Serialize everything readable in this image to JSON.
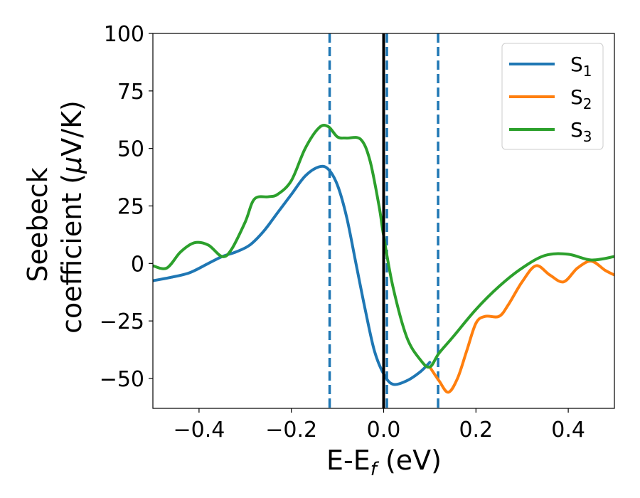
{
  "chart_data": {
    "type": "line",
    "xlabel": {
      "main": "E-E",
      "sub": "f",
      "rest": " (eV)"
    },
    "ylabel": {
      "line1": "Seebeck",
      "line2_pre": "coefficient  (",
      "mu": "μ",
      "line2_post": "V/K)"
    },
    "xlim": [
      -0.5,
      0.5
    ],
    "ylim": [
      -63,
      100
    ],
    "xticks": [
      -0.4,
      -0.2,
      0.0,
      0.2,
      0.4
    ],
    "xtick_labels": [
      "−0.4",
      "−0.2",
      "0.0",
      "0.2",
      "0.4"
    ],
    "yticks": [
      -50,
      -25,
      0,
      25,
      50,
      75,
      100
    ],
    "ytick_labels": [
      "−50",
      "−25",
      "0",
      "25",
      "50",
      "75",
      "100"
    ],
    "legend_position": "upper-right",
    "grid": false,
    "vlines": [
      {
        "x": 0.0,
        "style": "solid",
        "color": "#000000"
      },
      {
        "x": -0.117,
        "style": "dashed",
        "color": "#1f77b4"
      },
      {
        "x": 0.007,
        "style": "dashed",
        "color": "#1f77b4"
      },
      {
        "x": 0.118,
        "style": "dashed",
        "color": "#1f77b4"
      }
    ],
    "series": [
      {
        "name": {
          "main": "S",
          "sub": "1"
        },
        "color": "#1f77b4",
        "x": [
          -0.5,
          -0.46,
          -0.42,
          -0.38,
          -0.35,
          -0.32,
          -0.29,
          -0.26,
          -0.23,
          -0.2,
          -0.17,
          -0.14,
          -0.12,
          -0.1,
          -0.08,
          -0.06,
          -0.04,
          -0.02,
          0.0,
          0.02,
          0.05,
          0.08,
          0.1
        ],
        "y": [
          -7.5,
          -6,
          -4,
          0,
          3,
          5,
          8,
          14,
          22,
          30,
          38,
          42,
          41,
          34,
          20,
          0,
          -20,
          -38,
          -48,
          -52.5,
          -51,
          -47,
          -43
        ]
      },
      {
        "name": {
          "main": "S",
          "sub": "2"
        },
        "color": "#ff7f0e",
        "x": [
          0.1,
          0.12,
          0.14,
          0.16,
          0.18,
          0.2,
          0.22,
          0.25,
          0.27,
          0.3,
          0.33,
          0.36,
          0.39,
          0.42,
          0.45,
          0.48,
          0.5
        ],
        "y": [
          -45,
          -51,
          -56,
          -50,
          -38,
          -26,
          -23,
          -23,
          -18,
          -8,
          -1,
          -5,
          -8,
          -2,
          1,
          -3,
          -5
        ]
      },
      {
        "name": {
          "main": "S",
          "sub": "3"
        },
        "color": "#2ca02c",
        "x": [
          -0.5,
          -0.47,
          -0.44,
          -0.41,
          -0.38,
          -0.35,
          -0.33,
          -0.3,
          -0.28,
          -0.25,
          -0.23,
          -0.2,
          -0.17,
          -0.14,
          -0.12,
          -0.1,
          -0.08,
          -0.05,
          -0.03,
          -0.01,
          0.0,
          0.02,
          0.05,
          0.08,
          0.1,
          0.12,
          0.15,
          0.2,
          0.25,
          0.3,
          0.35,
          0.4,
          0.45,
          0.5
        ],
        "y": [
          -1,
          -2,
          5,
          9,
          8,
          3,
          6,
          18,
          28,
          29,
          30,
          36,
          50,
          59,
          59.5,
          55,
          54.5,
          54,
          45,
          25,
          12,
          -10,
          -32,
          -42,
          -45,
          -39,
          -32,
          -20,
          -10,
          -2,
          3.5,
          4,
          1.5,
          3
        ]
      }
    ]
  }
}
